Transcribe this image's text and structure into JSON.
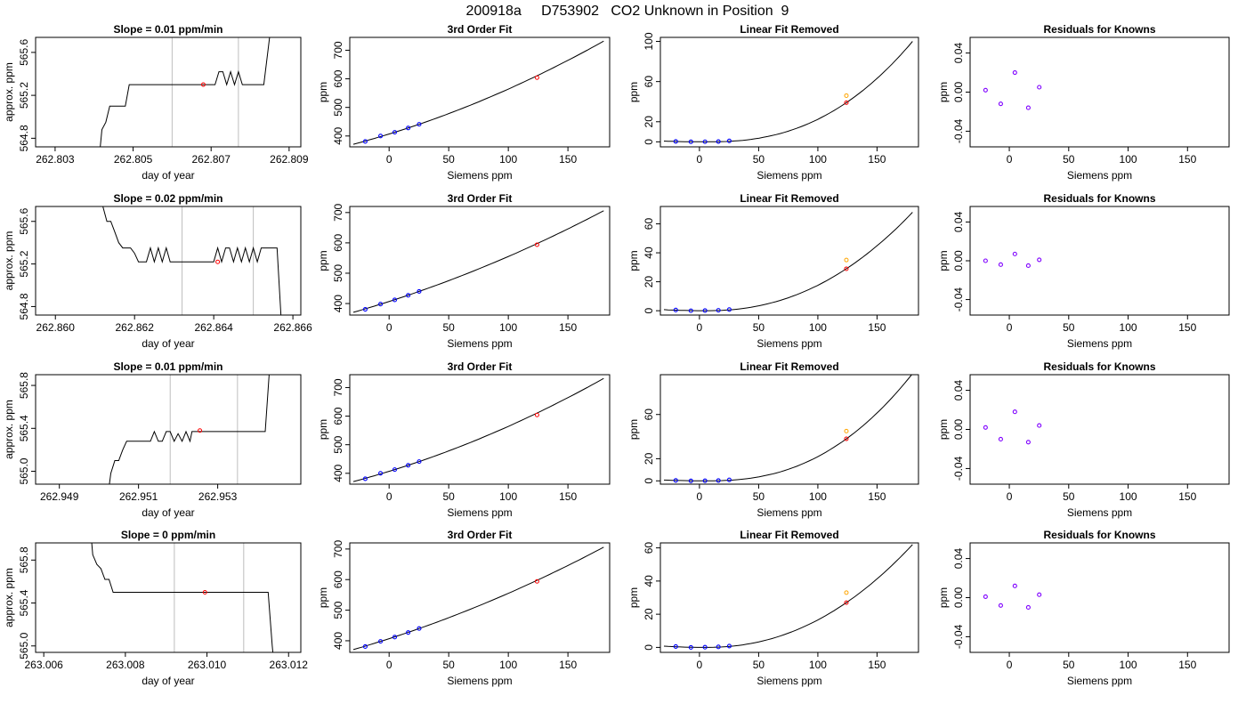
{
  "figure_title": "200918a     D753902   CO2 Unknown in Position  9",
  "colors": {
    "line": "#000000",
    "known": "#0000ff",
    "unknown": "#ff0000",
    "linear": "#ffa500",
    "residual": "#7f00ff",
    "vline": "#bebebe"
  },
  "chart_data": [
    {
      "type": "line",
      "title": "Slope =  0.01  ppm/min",
      "xlabel": "day of year",
      "ylabel": "approx. ppm",
      "xlim": [
        262.8025,
        262.8093
      ],
      "ylim": [
        564.72,
        565.74
      ],
      "xticks": [
        "262.803",
        "262.805",
        "262.807",
        "262.809"
      ],
      "yticks": [
        "564.8",
        "565.2",
        "565.6"
      ],
      "vlines": [
        262.806,
        262.8077
      ],
      "trace": [
        [
          262.8041,
          564.5
        ],
        [
          262.8042,
          564.88
        ],
        [
          262.8043,
          564.95
        ],
        [
          262.8044,
          565.1
        ],
        [
          262.8048,
          565.1
        ],
        [
          262.8049,
          565.3
        ],
        [
          262.8058,
          565.3
        ],
        [
          262.8067,
          565.3
        ],
        [
          262.8069,
          565.3
        ],
        [
          262.8071,
          565.3
        ],
        [
          262.8072,
          565.42
        ],
        [
          262.8073,
          565.42
        ],
        [
          262.8074,
          565.3
        ],
        [
          262.8075,
          565.42
        ],
        [
          262.8076,
          565.3
        ],
        [
          262.8077,
          565.42
        ],
        [
          262.8078,
          565.3
        ],
        [
          262.80835,
          565.3
        ],
        [
          262.8085,
          565.74
        ],
        [
          262.8086,
          566.2
        ]
      ],
      "point": [
        262.8068,
        565.3
      ]
    },
    {
      "type": "scatter",
      "title": "3rd Order Fit",
      "xlabel": "Siemens ppm",
      "ylabel": "ppm",
      "xlim": [
        -33,
        185
      ],
      "ylim": [
        362,
        745
      ],
      "xticks": [
        0,
        50,
        100,
        150
      ],
      "yticks": [
        400,
        500,
        600,
        700
      ],
      "known_x": [
        -20.0,
        -7.2,
        4.7,
        16.0,
        25.2
      ],
      "known_y": [
        381,
        400,
        413,
        428,
        441
      ],
      "unknown": [
        124.1,
        604
      ],
      "fit_range": [
        -30,
        180
      ],
      "fit_at_x": [
        -30,
        25.2,
        180
      ],
      "fit_at_y": [
        371,
        441,
        732
      ]
    },
    {
      "type": "scatter",
      "title": "Linear Fit Removed",
      "xlabel": "Siemens ppm",
      "ylabel": "ppm",
      "xlim": [
        -33,
        185
      ],
      "ylim": [
        -5,
        104
      ],
      "xticks": [
        0,
        50,
        100,
        150
      ],
      "yticks": [
        0,
        20,
        60,
        100
      ],
      "known_x": [
        -20.0,
        -7.2,
        4.7,
        16.0,
        25.2
      ],
      "known_y": [
        0.4,
        0,
        0.1,
        0.3,
        0.9
      ],
      "unknown": [
        124.1,
        39
      ],
      "linear": [
        124.1,
        46
      ],
      "fit_range": [
        -30,
        180
      ],
      "fit_at_x": [
        5,
        124.1,
        180
      ],
      "fit_at_y": [
        0,
        39,
        100
      ]
    },
    {
      "type": "scatter",
      "title": "Residuals for Knowns",
      "xlabel": "Siemens ppm",
      "ylabel": "ppm",
      "xlim": [
        -33,
        185
      ],
      "ylim": [
        -0.056,
        0.056
      ],
      "xticks": [
        0,
        50,
        100,
        150
      ],
      "yticks": [
        "-0.04",
        "0.00",
        "0.04"
      ],
      "known_x": [
        -20.0,
        -7.2,
        4.7,
        16.0,
        25.2
      ],
      "known_y": [
        0.002,
        -0.012,
        0.02,
        -0.016,
        0.005
      ]
    },
    {
      "type": "line",
      "title": "Slope =  0.02  ppm/min",
      "xlabel": "day of year",
      "ylabel": "approx. ppm",
      "xlim": [
        262.8595,
        262.8662
      ],
      "ylim": [
        564.72,
        565.74
      ],
      "xticks": [
        "262.860",
        "262.862",
        "262.864",
        "262.866"
      ],
      "yticks": [
        "564.8",
        "565.2",
        "565.6"
      ],
      "vlines": [
        262.8632,
        262.865
      ],
      "trace": [
        [
          262.8612,
          565.74
        ],
        [
          262.8613,
          565.6
        ],
        [
          262.8614,
          565.6
        ],
        [
          262.8615,
          565.5
        ],
        [
          262.8616,
          565.4
        ],
        [
          262.8617,
          565.35
        ],
        [
          262.8619,
          565.35
        ],
        [
          262.862,
          565.3
        ],
        [
          262.8621,
          565.22
        ],
        [
          262.8623,
          565.22
        ],
        [
          262.8624,
          565.35
        ],
        [
          262.8625,
          565.22
        ],
        [
          262.8626,
          565.35
        ],
        [
          262.8627,
          565.22
        ],
        [
          262.8628,
          565.35
        ],
        [
          262.8629,
          565.22
        ],
        [
          262.863,
          565.22
        ],
        [
          262.8632,
          565.22
        ],
        [
          262.8634,
          565.22
        ],
        [
          262.8636,
          565.22
        ],
        [
          262.8638,
          565.22
        ],
        [
          262.864,
          565.22
        ],
        [
          262.8641,
          565.35
        ],
        [
          262.8642,
          565.22
        ],
        [
          262.8643,
          565.35
        ],
        [
          262.8644,
          565.35
        ],
        [
          262.8645,
          565.22
        ],
        [
          262.8646,
          565.35
        ],
        [
          262.8647,
          565.22
        ],
        [
          262.8648,
          565.35
        ],
        [
          262.8649,
          565.22
        ],
        [
          262.865,
          565.35
        ],
        [
          262.8651,
          565.22
        ],
        [
          262.8652,
          565.35
        ],
        [
          262.8654,
          565.35
        ],
        [
          262.8656,
          565.35
        ],
        [
          262.8657,
          564.7
        ],
        [
          262.8658,
          564.4
        ]
      ],
      "point": [
        262.8641,
        565.22
      ]
    },
    {
      "type": "scatter",
      "title": "3rd Order Fit",
      "xlabel": "Siemens ppm",
      "ylabel": "ppm",
      "xlim": [
        -33,
        185
      ],
      "ylim": [
        362,
        720
      ],
      "xticks": [
        0,
        50,
        100,
        150
      ],
      "yticks": [
        400,
        500,
        600,
        700
      ],
      "known_x": [
        -20.0,
        -7.2,
        4.7,
        16.0,
        25.2
      ],
      "known_y": [
        381,
        398,
        412,
        427,
        440
      ],
      "unknown": [
        124.1,
        594
      ],
      "fit_range": [
        -30,
        180
      ],
      "fit_at_x": [
        -30,
        25.2,
        180
      ],
      "fit_at_y": [
        371,
        440,
        706
      ]
    },
    {
      "type": "scatter",
      "title": "Linear Fit Removed",
      "xlabel": "Siemens ppm",
      "ylabel": "ppm",
      "xlim": [
        -33,
        185
      ],
      "ylim": [
        -3,
        72
      ],
      "xticks": [
        0,
        50,
        100,
        150
      ],
      "yticks": [
        0,
        20,
        40,
        60
      ],
      "known_x": [
        -20.0,
        -7.2,
        4.7,
        16.0,
        25.2
      ],
      "known_y": [
        0.5,
        0,
        0.1,
        0.3,
        0.8
      ],
      "unknown": [
        124.1,
        29
      ],
      "linear": [
        124.1,
        35
      ],
      "fit_range": [
        -30,
        180
      ],
      "fit_at_x": [
        5,
        124.1,
        180
      ],
      "fit_at_y": [
        0,
        29,
        68
      ]
    },
    {
      "type": "scatter",
      "title": "Residuals for Knowns",
      "xlabel": "Siemens ppm",
      "ylabel": "ppm",
      "xlim": [
        -33,
        185
      ],
      "ylim": [
        -0.056,
        0.056
      ],
      "xticks": [
        0,
        50,
        100,
        150
      ],
      "yticks": [
        "-0.04",
        "0.00",
        "0.04"
      ],
      "known_x": [
        -20.0,
        -7.2,
        4.7,
        16.0,
        25.2
      ],
      "known_y": [
        0.0,
        -0.004,
        0.007,
        -0.005,
        0.001
      ]
    },
    {
      "type": "line",
      "title": "Slope =  0.01  ppm/min",
      "xlabel": "day of year",
      "ylabel": "approx. ppm",
      "xlim": [
        262.9484,
        262.9551
      ],
      "ylim": [
        564.88,
        565.9
      ],
      "xticks": [
        "262.949",
        "262.951",
        "262.953"
      ],
      "yticks": [
        "565.0",
        "565.4",
        "565.8"
      ],
      "vlines": [
        262.9518,
        262.9535
      ],
      "trace": [
        [
          262.9502,
          564.7
        ],
        [
          262.9503,
          564.98
        ],
        [
          262.9504,
          565.1
        ],
        [
          262.9505,
          565.1
        ],
        [
          262.9506,
          565.2
        ],
        [
          262.9507,
          565.28
        ],
        [
          262.9513,
          565.28
        ],
        [
          262.9514,
          565.37
        ],
        [
          262.9515,
          565.28
        ],
        [
          262.9516,
          565.28
        ],
        [
          262.9517,
          565.37
        ],
        [
          262.9518,
          565.37
        ],
        [
          262.9519,
          565.28
        ],
        [
          262.952,
          565.35
        ],
        [
          262.9521,
          565.28
        ],
        [
          262.9522,
          565.37
        ],
        [
          262.9523,
          565.28
        ],
        [
          262.95235,
          565.37
        ],
        [
          262.9524,
          565.37
        ],
        [
          262.9534,
          565.37
        ],
        [
          262.9542,
          565.37
        ],
        [
          262.9543,
          565.9
        ],
        [
          262.9544,
          566.3
        ]
      ],
      "point": [
        262.95255,
        565.38
      ]
    },
    {
      "type": "scatter",
      "title": "3rd Order Fit",
      "xlabel": "Siemens ppm",
      "ylabel": "ppm",
      "xlim": [
        -33,
        185
      ],
      "ylim": [
        362,
        745
      ],
      "xticks": [
        0,
        50,
        100,
        150
      ],
      "yticks": [
        400,
        500,
        600,
        700
      ],
      "known_x": [
        -20.0,
        -7.2,
        4.7,
        16.0,
        25.2
      ],
      "known_y": [
        381,
        400,
        413,
        428,
        441
      ],
      "unknown": [
        124.1,
        604
      ],
      "fit_range": [
        -30,
        180
      ],
      "fit_at_x": [
        -30,
        25.2,
        180
      ],
      "fit_at_y": [
        371,
        441,
        732
      ]
    },
    {
      "type": "scatter",
      "title": "Linear Fit Removed",
      "xlabel": "Siemens ppm",
      "ylabel": "ppm",
      "xlim": [
        -33,
        185
      ],
      "ylim": [
        -3,
        96
      ],
      "xticks": [
        0,
        50,
        100,
        150
      ],
      "yticks": [
        0,
        20,
        60
      ],
      "known_x": [
        -20.0,
        -7.2,
        4.7,
        16.0,
        25.2
      ],
      "known_y": [
        0.4,
        0,
        0.1,
        0.3,
        0.9
      ],
      "unknown": [
        124.1,
        38
      ],
      "linear": [
        124.1,
        45
      ],
      "fit_range": [
        -30,
        180
      ],
      "fit_at_x": [
        5,
        124.1,
        180
      ],
      "fit_at_y": [
        0,
        38,
        97
      ]
    },
    {
      "type": "scatter",
      "title": "Residuals for Knowns",
      "xlabel": "Siemens ppm",
      "ylabel": "ppm",
      "xlim": [
        -33,
        185
      ],
      "ylim": [
        -0.056,
        0.056
      ],
      "xticks": [
        0,
        50,
        100,
        150
      ],
      "yticks": [
        "-0.04",
        "0.00",
        "0.04"
      ],
      "known_x": [
        -20.0,
        -7.2,
        4.7,
        16.0,
        25.2
      ],
      "known_y": [
        0.002,
        -0.01,
        0.018,
        -0.013,
        0.004
      ]
    },
    {
      "type": "line",
      "title": "Slope =  0  ppm/min",
      "xlabel": "day of year",
      "ylabel": "approx. ppm",
      "xlim": [
        263.0058,
        263.0123
      ],
      "ylim": [
        564.94,
        565.96
      ],
      "xticks": [
        "263.006",
        "263.008",
        "263.010",
        "263.012"
      ],
      "yticks": [
        "565.0",
        "565.4",
        "565.8"
      ],
      "vlines": [
        263.0092,
        263.0109
      ],
      "trace": [
        [
          263.0071,
          566.3
        ],
        [
          263.0072,
          565.85
        ],
        [
          263.0073,
          565.76
        ],
        [
          263.0074,
          565.72
        ],
        [
          263.0075,
          565.62
        ],
        [
          263.0076,
          565.62
        ],
        [
          263.0077,
          565.5
        ],
        [
          263.0085,
          565.5
        ],
        [
          263.0095,
          565.5
        ],
        [
          263.0105,
          565.5
        ],
        [
          263.0115,
          565.5
        ],
        [
          263.0116,
          565.0
        ],
        [
          263.0117,
          564.6
        ]
      ],
      "point": [
        263.00995,
        565.5
      ]
    },
    {
      "type": "scatter",
      "title": "3rd Order Fit",
      "xlabel": "Siemens ppm",
      "ylabel": "ppm",
      "xlim": [
        -33,
        185
      ],
      "ylim": [
        362,
        720
      ],
      "xticks": [
        0,
        50,
        100,
        150
      ],
      "yticks": [
        400,
        500,
        600,
        700
      ],
      "known_x": [
        -20.0,
        -7.2,
        4.7,
        16.0,
        25.2
      ],
      "known_y": [
        381,
        398,
        412,
        427,
        440
      ],
      "unknown": [
        124.1,
        594
      ],
      "fit_range": [
        -30,
        180
      ],
      "fit_at_x": [
        -30,
        25.2,
        180
      ],
      "fit_at_y": [
        371,
        440,
        706
      ]
    },
    {
      "type": "scatter",
      "title": "Linear Fit Removed",
      "xlabel": "Siemens ppm",
      "ylabel": "ppm",
      "xlim": [
        -33,
        185
      ],
      "ylim": [
        -3,
        63
      ],
      "xticks": [
        0,
        50,
        100,
        150
      ],
      "yticks": [
        0,
        20,
        40,
        60
      ],
      "known_x": [
        -20.0,
        -7.2,
        4.7,
        16.0,
        25.2
      ],
      "known_y": [
        0.5,
        0,
        0.1,
        0.3,
        0.8
      ],
      "unknown": [
        124.1,
        27
      ],
      "linear": [
        124.1,
        33
      ],
      "fit_range": [
        -30,
        180
      ],
      "fit_at_x": [
        5,
        124.1,
        180
      ],
      "fit_at_y": [
        0,
        27,
        62
      ]
    },
    {
      "type": "scatter",
      "title": "Residuals for Knowns",
      "xlabel": "Siemens ppm",
      "ylabel": "ppm",
      "xlim": [
        -33,
        185
      ],
      "ylim": [
        -0.056,
        0.056
      ],
      "xticks": [
        0,
        50,
        100,
        150
      ],
      "yticks": [
        "-0.04",
        "0.00",
        "0.04"
      ],
      "known_x": [
        -20.0,
        -7.2,
        4.7,
        16.0,
        25.2
      ],
      "known_y": [
        0.001,
        -0.008,
        0.012,
        -0.01,
        0.003
      ]
    }
  ]
}
